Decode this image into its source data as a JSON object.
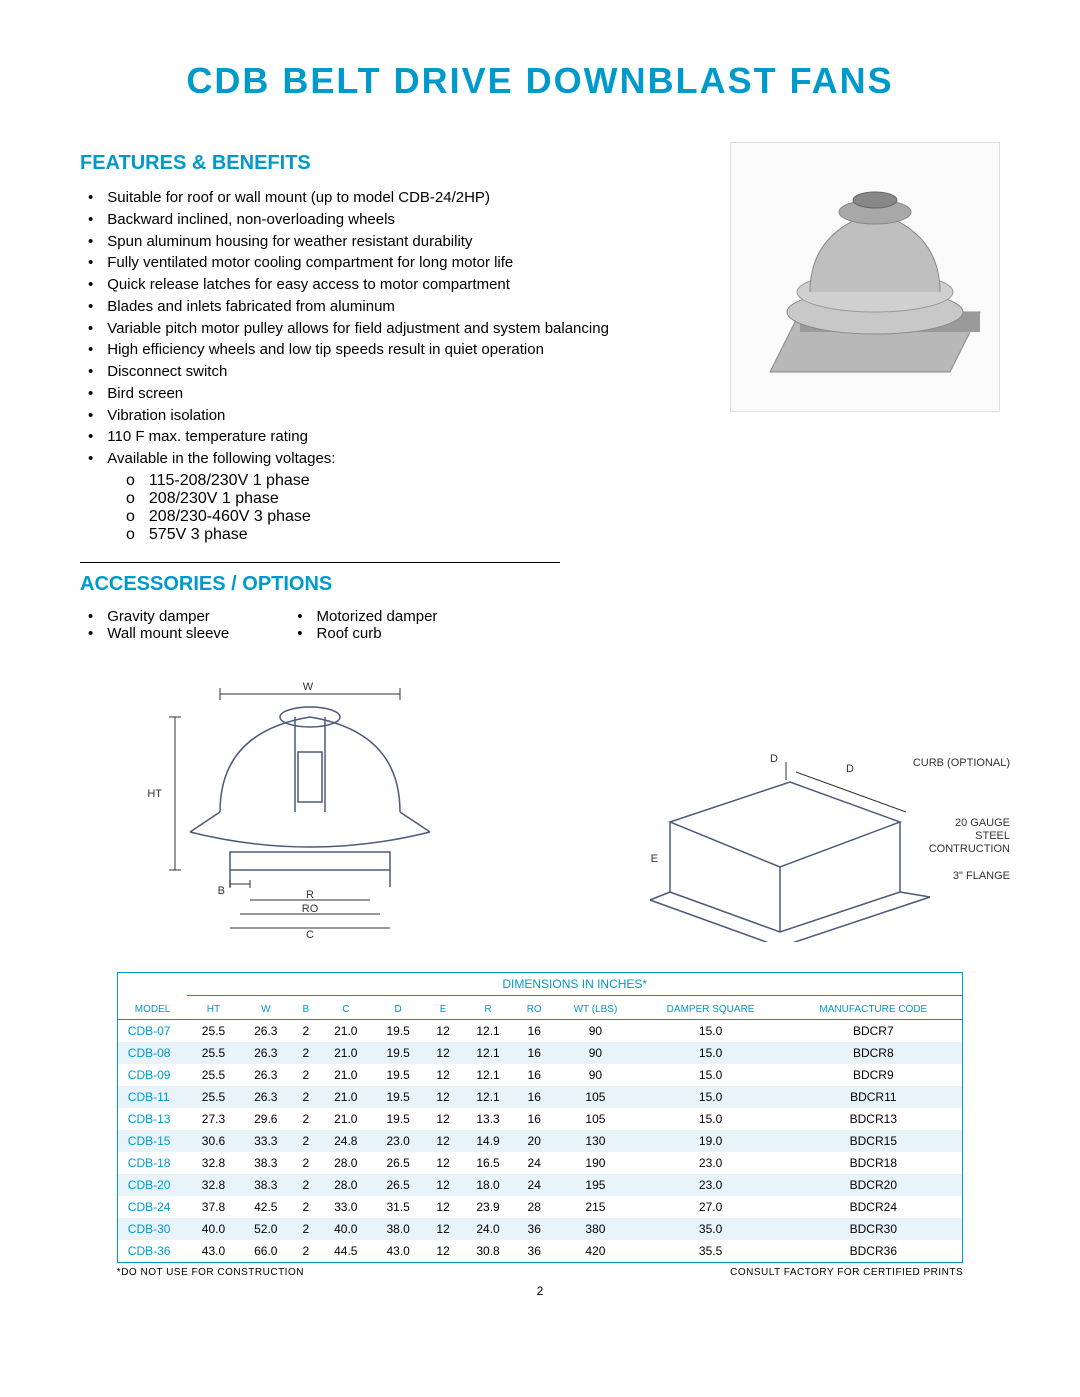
{
  "title": "CDB BELT DRIVE DOWNBLAST FANS",
  "colors": {
    "accent": "#0099cc",
    "row_alt": "#e8f4fa",
    "text": "#000000",
    "bg": "#ffffff"
  },
  "sections": {
    "features_heading": "FEATURES & BENEFITS",
    "accessories_heading": "ACCESSORIES / OPTIONS"
  },
  "features": [
    "Suitable for roof or wall mount (up to model CDB-24/2HP)",
    "Backward inclined, non-overloading wheels",
    "Spun aluminum housing for weather resistant durability",
    "Fully ventilated motor cooling compartment for long motor life",
    "Quick release latches for easy access to motor compartment",
    "Blades and inlets fabricated from aluminum",
    "Variable pitch motor pulley allows for field adjustment and system balancing",
    "High efficiency wheels and low tip speeds result in quiet operation",
    "Disconnect switch",
    "Bird screen",
    "Vibration isolation",
    "110 F max. temperature rating",
    "Available in the following voltages:"
  ],
  "voltages": [
    "115-208/230V 1 phase",
    "208/230V 1 phase",
    "208/230-460V 3 phase",
    "575V 3 phase"
  ],
  "accessories_left": [
    "Gravity damper",
    "Wall mount sleeve"
  ],
  "accessories_right": [
    "Motorized damper",
    "Roof curb"
  ],
  "diagram_labels": {
    "ht": "HT",
    "w": "W",
    "b": "B",
    "r": "R",
    "ro": "RO",
    "c": "C",
    "d": "D",
    "e": "E",
    "curb_optional": "CURB (OPTIONAL)",
    "gauge": "20 GAUGE",
    "steel": "STEEL",
    "construction": "CONTRUCTION",
    "flange": "3\" FLANGE"
  },
  "table": {
    "group_header": "DIMENSIONS IN INCHES*",
    "columns": [
      "MODEL",
      "HT",
      "W",
      "B",
      "C",
      "D",
      "E",
      "R",
      "RO",
      "WT\n(LBS)",
      "DAMPER\nSQUARE",
      "MANUFACTURE\nCODE"
    ],
    "rows": [
      [
        "CDB-07",
        "25.5",
        "26.3",
        "2",
        "21.0",
        "19.5",
        "12",
        "12.1",
        "16",
        "90",
        "15.0",
        "BDCR7"
      ],
      [
        "CDB-08",
        "25.5",
        "26.3",
        "2",
        "21.0",
        "19.5",
        "12",
        "12.1",
        "16",
        "90",
        "15.0",
        "BDCR8"
      ],
      [
        "CDB-09",
        "25.5",
        "26.3",
        "2",
        "21.0",
        "19.5",
        "12",
        "12.1",
        "16",
        "90",
        "15.0",
        "BDCR9"
      ],
      [
        "CDB-11",
        "25.5",
        "26.3",
        "2",
        "21.0",
        "19.5",
        "12",
        "12.1",
        "16",
        "105",
        "15.0",
        "BDCR11"
      ],
      [
        "CDB-13",
        "27.3",
        "29.6",
        "2",
        "21.0",
        "19.5",
        "12",
        "13.3",
        "16",
        "105",
        "15.0",
        "BDCR13"
      ],
      [
        "CDB-15",
        "30.6",
        "33.3",
        "2",
        "24.8",
        "23.0",
        "12",
        "14.9",
        "20",
        "130",
        "19.0",
        "BDCR15"
      ],
      [
        "CDB-18",
        "32.8",
        "38.3",
        "2",
        "28.0",
        "26.5",
        "12",
        "16.5",
        "24",
        "190",
        "23.0",
        "BDCR18"
      ],
      [
        "CDB-20",
        "32.8",
        "38.3",
        "2",
        "28.0",
        "26.5",
        "12",
        "18.0",
        "24",
        "195",
        "23.0",
        "BDCR20"
      ],
      [
        "CDB-24",
        "37.8",
        "42.5",
        "2",
        "33.0",
        "31.5",
        "12",
        "23.9",
        "28",
        "215",
        "27.0",
        "BDCR24"
      ],
      [
        "CDB-30",
        "40.0",
        "52.0",
        "2",
        "40.0",
        "38.0",
        "12",
        "24.0",
        "36",
        "380",
        "35.0",
        "BDCR30"
      ],
      [
        "CDB-36",
        "43.0",
        "66.0",
        "2",
        "44.5",
        "43.0",
        "12",
        "30.8",
        "36",
        "420",
        "35.5",
        "BDCR36"
      ]
    ],
    "footnote_left": "*DO NOT USE FOR CONSTRUCTION",
    "footnote_right": "CONSULT FACTORY FOR CERTIFIED PRINTS"
  },
  "page_number": "2"
}
